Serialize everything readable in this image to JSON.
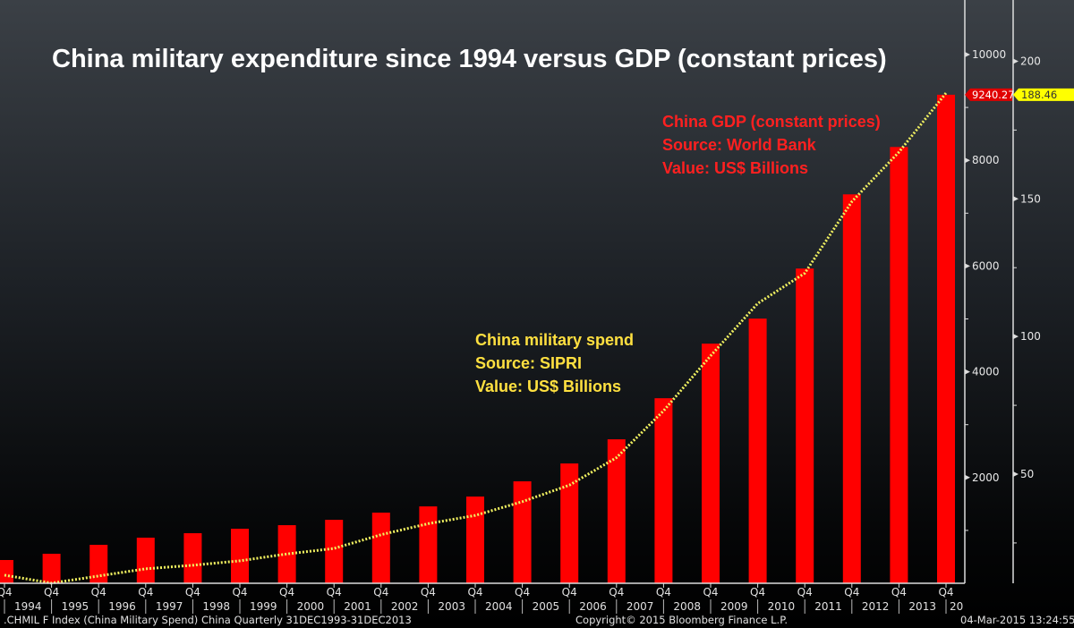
{
  "chart_data": {
    "type": "bar+line",
    "title": "China military expenditure since 1994 versus GDP (constant prices)",
    "categories": [
      "Q4 1993",
      "Q4 1994",
      "Q4 1995",
      "Q4 1996",
      "Q4 1997",
      "Q4 1998",
      "Q4 1999",
      "Q4 2000",
      "Q4 2001",
      "Q4 2002",
      "Q4 2003",
      "Q4 2004",
      "Q4 2005",
      "Q4 2006",
      "Q4 2007",
      "Q4 2008",
      "Q4 2009",
      "Q4 2010",
      "Q4 2011",
      "Q4 2012",
      "Q4 2013"
    ],
    "quarter_labels": [
      "Q4",
      "Q4",
      "Q4",
      "Q4",
      "Q4",
      "Q4",
      "Q4",
      "Q4",
      "Q4",
      "Q4",
      "Q4",
      "Q4",
      "Q4",
      "Q4",
      "Q4",
      "Q4",
      "Q4",
      "Q4",
      "Q4",
      "Q4",
      "Q4"
    ],
    "year_labels": [
      "1994",
      "1995",
      "1996",
      "1997",
      "1998",
      "1999",
      "2000",
      "2001",
      "2002",
      "2003",
      "2004",
      "2005",
      "2006",
      "2007",
      "2008",
      "2009",
      "2010",
      "2011",
      "2012",
      "2013",
      "20"
    ],
    "series": [
      {
        "kind": "bar",
        "axis": "left",
        "color": "#ff0000",
        "values": [
          440,
          558,
          727,
          862,
          947,
          1031,
          1099,
          1200,
          1336,
          1454,
          1640,
          1928,
          2266,
          2723,
          3500,
          4532,
          5006,
          5953,
          7356,
          8252,
          9240.27
        ],
        "last_label": "9240.270"
      },
      {
        "kind": "line",
        "axis": "right",
        "style": "dotted",
        "color": "#f0f060",
        "values": [
          13.3,
          10.4,
          13,
          15.6,
          16.9,
          18.5,
          21,
          23,
          28,
          32,
          35,
          40,
          46,
          56,
          73,
          93,
          112,
          123,
          149,
          167,
          188.46
        ],
        "last_label": "188.46"
      }
    ],
    "left_axis": {
      "range": [
        0,
        11000
      ],
      "ticks": [
        "2000",
        "4000",
        "6000",
        "8000",
        "10000"
      ],
      "tick_values": [
        2000,
        4000,
        6000,
        8000,
        10000
      ]
    },
    "right_axis": {
      "range": [
        10.4,
        225
      ],
      "ticks": [
        "50",
        "100",
        "150",
        "200"
      ],
      "tick_values": [
        50,
        100,
        150,
        200
      ]
    },
    "annotations": [
      {
        "color": "#ff2020",
        "lines": [
          "China GDP (constant prices)",
          "Source: World Bank",
          "Value: US$ Billions"
        ]
      },
      {
        "color": "#ffe040",
        "lines": [
          "China military spend",
          "Source: SIPRI",
          "Value: US$ Billions"
        ]
      }
    ],
    "grid": false
  },
  "footer": {
    "left": ".CHMIL F Index (China Military Spend) China  Quarterly 31DEC1993-31DEC2013",
    "center": "Copyright© 2015 Bloomberg Finance L.P.",
    "right": "04-Mar-2015 13:24:55"
  }
}
